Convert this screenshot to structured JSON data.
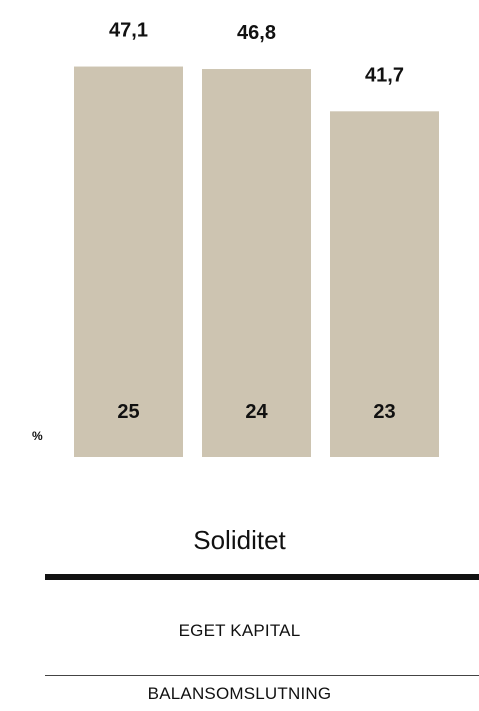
{
  "chart_data": {
    "type": "bar",
    "title": "Soliditet",
    "unit": "%",
    "categories": [
      "25",
      "24",
      "23"
    ],
    "values": [
      47.1,
      46.8,
      41.7
    ],
    "value_labels": [
      "47,1",
      "46,8",
      "41,7"
    ],
    "bar_color": "#cdc4b1",
    "grid": false
  },
  "legend": {
    "items": [
      "EGET KAPITAL",
      "BALANSOMSLUTNING"
    ]
  }
}
